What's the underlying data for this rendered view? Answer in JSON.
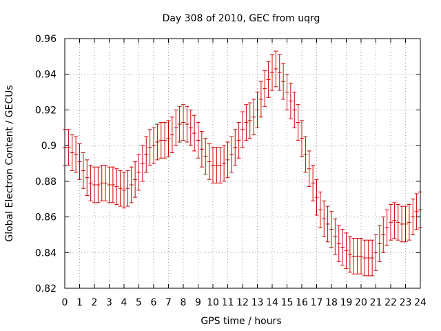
{
  "chart_data": {
    "type": "line",
    "title": "Day 308 of 2010, GEC from uqrg",
    "xlabel": "GPS time / hours",
    "ylabel": "Global Electron Content / GECUs",
    "xlim": [
      0,
      24
    ],
    "ylim": [
      0.82,
      0.96
    ],
    "grid": true,
    "xticks": [
      0,
      1,
      2,
      3,
      4,
      5,
      6,
      7,
      8,
      9,
      10,
      11,
      12,
      13,
      14,
      15,
      16,
      17,
      18,
      19,
      20,
      21,
      22,
      23,
      24
    ],
    "xtick_labels": [
      "0",
      "1",
      "2",
      "3",
      "4",
      "5",
      "6",
      "7",
      "8",
      "9",
      "10",
      "11",
      "12",
      "13",
      "14",
      "15",
      "16",
      "17",
      "18",
      "19",
      "20",
      "21",
      "22",
      "23",
      "24"
    ],
    "yticks": [
      0.82,
      0.84,
      0.86,
      0.88,
      0.9,
      0.92,
      0.94,
      0.96
    ],
    "ytick_labels": [
      "0.82",
      "0.84",
      "0.86",
      "0.88",
      "0.9",
      "0.92",
      "0.94",
      "0.96"
    ],
    "error": 0.01,
    "colors": {
      "series": "#cc0000",
      "grid": "#a0a0a0",
      "axis": "#000000"
    },
    "series": [
      {
        "x": [
          0,
          0.25,
          0.5,
          0.75,
          1,
          1.25,
          1.5,
          1.75,
          2,
          2.25,
          2.5,
          2.75,
          3,
          3.25,
          3.5,
          3.75,
          4,
          4.25,
          4.5,
          4.75,
          5,
          5.25,
          5.5,
          5.75,
          6,
          6.25,
          6.5,
          6.75,
          7,
          7.25,
          7.5,
          7.75,
          8,
          8.25,
          8.5,
          8.75,
          9,
          9.25,
          9.5,
          9.75,
          10,
          10.25,
          10.5,
          10.75,
          11,
          11.25,
          11.5,
          11.75,
          12,
          12.25,
          12.5,
          12.75,
          13,
          13.25,
          13.5,
          13.75,
          14,
          14.25,
          14.5,
          14.75,
          15,
          15.25,
          15.5,
          15.75,
          16,
          16.25,
          16.5,
          16.75,
          17,
          17.25,
          17.5,
          17.75,
          18,
          18.25,
          18.5,
          18.75,
          19,
          19.25,
          19.5,
          19.75,
          20,
          20.25,
          20.5,
          20.75,
          21,
          21.25,
          21.5,
          21.75,
          22,
          22.25,
          22.5,
          22.75,
          23,
          23.25,
          23.5,
          23.75,
          24
        ],
        "values": [
          0.899,
          0.899,
          0.896,
          0.895,
          0.891,
          0.886,
          0.882,
          0.879,
          0.878,
          0.878,
          0.879,
          0.879,
          0.878,
          0.878,
          0.877,
          0.876,
          0.875,
          0.876,
          0.878,
          0.881,
          0.885,
          0.89,
          0.895,
          0.899,
          0.9,
          0.902,
          0.903,
          0.903,
          0.904,
          0.906,
          0.91,
          0.912,
          0.913,
          0.912,
          0.91,
          0.907,
          0.903,
          0.898,
          0.894,
          0.891,
          0.889,
          0.889,
          0.889,
          0.89,
          0.892,
          0.895,
          0.899,
          0.903,
          0.909,
          0.913,
          0.914,
          0.916,
          0.92,
          0.926,
          0.932,
          0.937,
          0.941,
          0.943,
          0.941,
          0.936,
          0.93,
          0.925,
          0.92,
          0.913,
          0.904,
          0.895,
          0.887,
          0.879,
          0.871,
          0.864,
          0.859,
          0.856,
          0.853,
          0.849,
          0.845,
          0.843,
          0.841,
          0.839,
          0.838,
          0.838,
          0.838,
          0.837,
          0.837,
          0.837,
          0.84,
          0.845,
          0.85,
          0.854,
          0.857,
          0.858,
          0.857,
          0.856,
          0.856,
          0.857,
          0.86,
          0.863,
          0.864
        ]
      }
    ]
  }
}
